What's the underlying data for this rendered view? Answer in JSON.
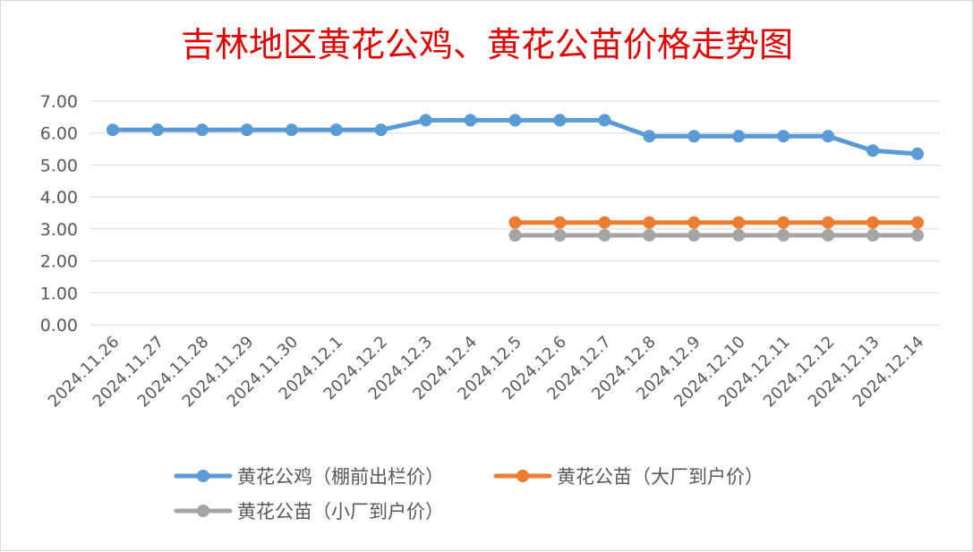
{
  "chart_data": {
    "type": "line",
    "title": "吉林地区黄花公鸡、黄花公苗价格走势图",
    "categories": [
      "2024.11.26",
      "2024.11.27",
      "2024.11.28",
      "2024.11.29",
      "2024.11.30",
      "2024.12.1",
      "2024.12.2",
      "2024.12.3",
      "2024.12.4",
      "2024.12.5",
      "2024.12.6",
      "2024.12.7",
      "2024.12.8",
      "2024.12.9",
      "2024.12.10",
      "2024.12.11",
      "2024.12.12",
      "2024.12.13",
      "2024.12.14"
    ],
    "y_ticks": [
      "0.00",
      "1.00",
      "2.00",
      "3.00",
      "4.00",
      "5.00",
      "6.00",
      "7.00"
    ],
    "ylim": [
      0,
      7
    ],
    "grid": true,
    "legend_position": "bottom",
    "series": [
      {
        "name": "黄花公鸡（棚前出栏价）",
        "color": "#5b9bd5",
        "values": [
          6.1,
          6.1,
          6.1,
          6.1,
          6.1,
          6.1,
          6.1,
          6.4,
          6.4,
          6.4,
          6.4,
          6.4,
          5.9,
          5.9,
          5.9,
          5.9,
          5.9,
          5.45,
          5.35
        ]
      },
      {
        "name": "黄花公苗（大厂到户价）",
        "color": "#ed7d31",
        "values": [
          null,
          null,
          null,
          null,
          null,
          null,
          null,
          null,
          null,
          3.2,
          3.2,
          3.2,
          3.2,
          3.2,
          3.2,
          3.2,
          3.2,
          3.2,
          3.2
        ]
      },
      {
        "name": "黄花公苗（小厂到户价）",
        "color": "#a5a5a5",
        "values": [
          null,
          null,
          null,
          null,
          null,
          null,
          null,
          null,
          null,
          2.8,
          2.8,
          2.8,
          2.8,
          2.8,
          2.8,
          2.8,
          2.8,
          2.8,
          2.8
        ]
      }
    ]
  }
}
